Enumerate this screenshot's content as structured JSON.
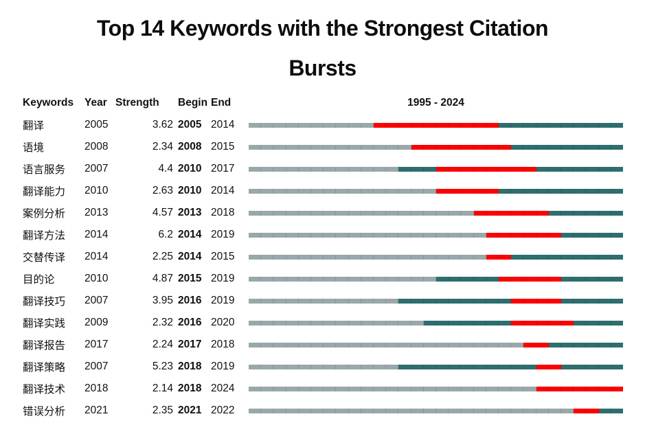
{
  "title": {
    "line1": "Top 14 Keywords with the Strongest Citation",
    "line2": "Bursts"
  },
  "chart_data": {
    "type": "table",
    "title": "Top 14 Keywords with the Strongest Citation Bursts",
    "columns": [
      "Keywords",
      "Year",
      "Strength",
      "Begin",
      "End"
    ],
    "timeline": {
      "start": 1995,
      "end": 2024,
      "label": "1995 - 2024"
    },
    "rows": [
      {
        "keyword": "翻译",
        "year": 2005,
        "strength": "3.62",
        "begin": 2005,
        "end": 2014
      },
      {
        "keyword": "语境",
        "year": 2008,
        "strength": "2.34",
        "begin": 2008,
        "end": 2015
      },
      {
        "keyword": "语言服务",
        "year": 2007,
        "strength": "4.4",
        "begin": 2010,
        "end": 2017
      },
      {
        "keyword": "翻译能力",
        "year": 2010,
        "strength": "2.63",
        "begin": 2010,
        "end": 2014
      },
      {
        "keyword": "案例分析",
        "year": 2013,
        "strength": "4.57",
        "begin": 2013,
        "end": 2018
      },
      {
        "keyword": "翻译方法",
        "year": 2014,
        "strength": "6.2",
        "begin": 2014,
        "end": 2019
      },
      {
        "keyword": "交替传译",
        "year": 2014,
        "strength": "2.25",
        "begin": 2014,
        "end": 2015
      },
      {
        "keyword": "目的论",
        "year": 2010,
        "strength": "4.87",
        "begin": 2015,
        "end": 2019
      },
      {
        "keyword": "翻译技巧",
        "year": 2007,
        "strength": "3.95",
        "begin": 2016,
        "end": 2019
      },
      {
        "keyword": "翻译实践",
        "year": 2009,
        "strength": "2.32",
        "begin": 2016,
        "end": 2020
      },
      {
        "keyword": "翻译报告",
        "year": 2017,
        "strength": "2.24",
        "begin": 2017,
        "end": 2018
      },
      {
        "keyword": "翻译策略",
        "year": 2007,
        "strength": "5.23",
        "begin": 2018,
        "end": 2019
      },
      {
        "keyword": "翻译技术",
        "year": 2018,
        "strength": "2.14",
        "begin": 2018,
        "end": 2024
      },
      {
        "keyword": "错误分析",
        "year": 2021,
        "strength": "2.35",
        "begin": 2021,
        "end": 2022
      }
    ],
    "colors": {
      "pre_period": "#9aa7ab",
      "active_period": "#2e6e6e",
      "burst_period": "#fb0303"
    },
    "segment_legend": {
      "pre_period": "years before keyword first appears",
      "active_period": "years keyword is active",
      "burst_period": "citation burst interval (Begin–End)"
    }
  }
}
